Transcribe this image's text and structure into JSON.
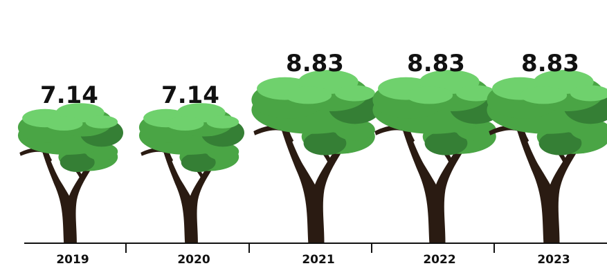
{
  "chart_data": {
    "type": "bar",
    "categories": [
      "2019",
      "2020",
      "2021",
      "2022",
      "2023"
    ],
    "values": [
      7.14,
      7.14,
      8.83,
      8.83,
      8.83
    ],
    "value_labels": [
      "7.14",
      "7.14",
      "8.83",
      "8.83",
      "8.83"
    ],
    "mark": "tree-icon",
    "title": "",
    "xlabel": "",
    "ylabel": "",
    "colors": {
      "canopy_light": "#6fd16d",
      "canopy_mid": "#4aa545",
      "canopy_dark": "#357f35",
      "trunk": "#2a1b12",
      "axis": "#111111"
    }
  }
}
